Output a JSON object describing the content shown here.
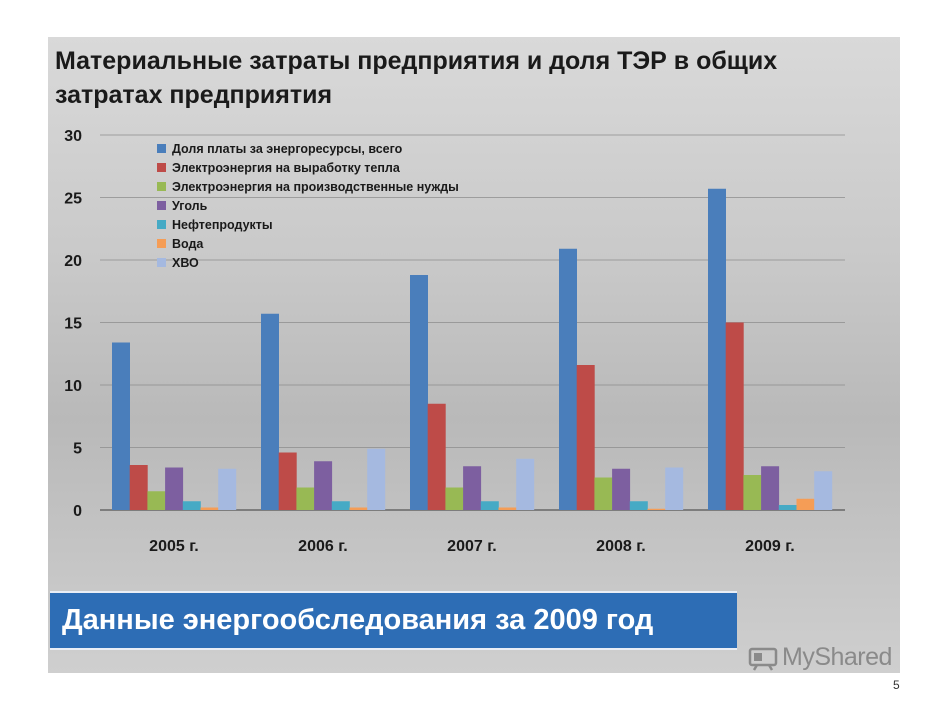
{
  "title": "Материальные затраты предприятия и доля ТЭР в общих затратах предприятия",
  "banner": "Данные энергообследования за 2009 год",
  "watermark": "MyShared",
  "page_number": "5",
  "colors": {
    "blue": "#4a7ebb",
    "red": "#be4b48",
    "green": "#98b954",
    "purple": "#7d5fa0",
    "teal": "#46aac5",
    "orange": "#f59d56",
    "lightblue": "#a5b9e0",
    "banner": "#2d6db5"
  },
  "chart_data": {
    "type": "bar",
    "title": "",
    "xlabel": "",
    "ylabel": "",
    "ylim": [
      0,
      30
    ],
    "yticks": [
      "0",
      "5",
      "10",
      "15",
      "20",
      "25",
      "30"
    ],
    "grid": true,
    "legend_position": "top-left",
    "categories": [
      "2005 г.",
      "2006 г.",
      "2007 г.",
      "2008 г.",
      "2009 г."
    ],
    "series": [
      {
        "name": "Доля платы за энергоресурсы, всего",
        "color": "#4a7ebb",
        "values": [
          13.4,
          15.7,
          18.8,
          20.9,
          25.7
        ]
      },
      {
        "name": "Электроэнергия на выработку тепла",
        "color": "#be4b48",
        "values": [
          3.6,
          4.6,
          8.5,
          11.6,
          15.0
        ]
      },
      {
        "name": "Электроэнергия на производственные нужды",
        "color": "#98b954",
        "values": [
          1.5,
          1.8,
          1.8,
          2.6,
          2.8
        ]
      },
      {
        "name": "Уголь",
        "color": "#7d5fa0",
        "values": [
          3.4,
          3.9,
          3.5,
          3.3,
          3.5
        ]
      },
      {
        "name": "Нефтепродукты",
        "color": "#46aac5",
        "values": [
          0.7,
          0.7,
          0.7,
          0.7,
          0.4
        ]
      },
      {
        "name": "Вода",
        "color": "#f59d56",
        "values": [
          0.2,
          0.2,
          0.2,
          0.1,
          0.9
        ]
      },
      {
        "name": "ХВО",
        "color": "#a5b9e0",
        "values": [
          3.3,
          4.9,
          4.1,
          3.4,
          3.1
        ]
      }
    ]
  }
}
